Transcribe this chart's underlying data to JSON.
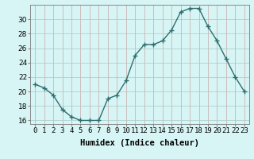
{
  "x": [
    0,
    1,
    2,
    3,
    4,
    5,
    6,
    7,
    8,
    9,
    10,
    11,
    12,
    13,
    14,
    15,
    16,
    17,
    18,
    19,
    20,
    21,
    22,
    23
  ],
  "y": [
    21.0,
    20.5,
    19.5,
    17.5,
    16.5,
    16.0,
    16.0,
    16.0,
    19.0,
    19.5,
    21.5,
    25.0,
    26.5,
    26.5,
    27.0,
    28.5,
    31.0,
    31.5,
    31.5,
    29.0,
    27.0,
    24.5,
    22.0,
    20.0
  ],
  "line_color": "#2d6e6e",
  "marker": "+",
  "markersize": 4,
  "linewidth": 1.0,
  "xlabel": "Humidex (Indice chaleur)",
  "ylabel": "",
  "xlim": [
    -0.5,
    23.5
  ],
  "ylim": [
    15.5,
    32.0
  ],
  "yticks": [
    16,
    18,
    20,
    22,
    24,
    26,
    28,
    30
  ],
  "xtick_labels": [
    "0",
    "1",
    "2",
    "3",
    "4",
    "5",
    "6",
    "7",
    "8",
    "9",
    "10",
    "11",
    "12",
    "13",
    "14",
    "15",
    "16",
    "17",
    "18",
    "19",
    "20",
    "21",
    "22",
    "23"
  ],
  "bg_color": "#d8f5f5",
  "grid_color_major": "#c8b8b8",
  "grid_color_minor": "#d8f0f0",
  "tick_fontsize": 6.5,
  "xlabel_fontsize": 7.5
}
